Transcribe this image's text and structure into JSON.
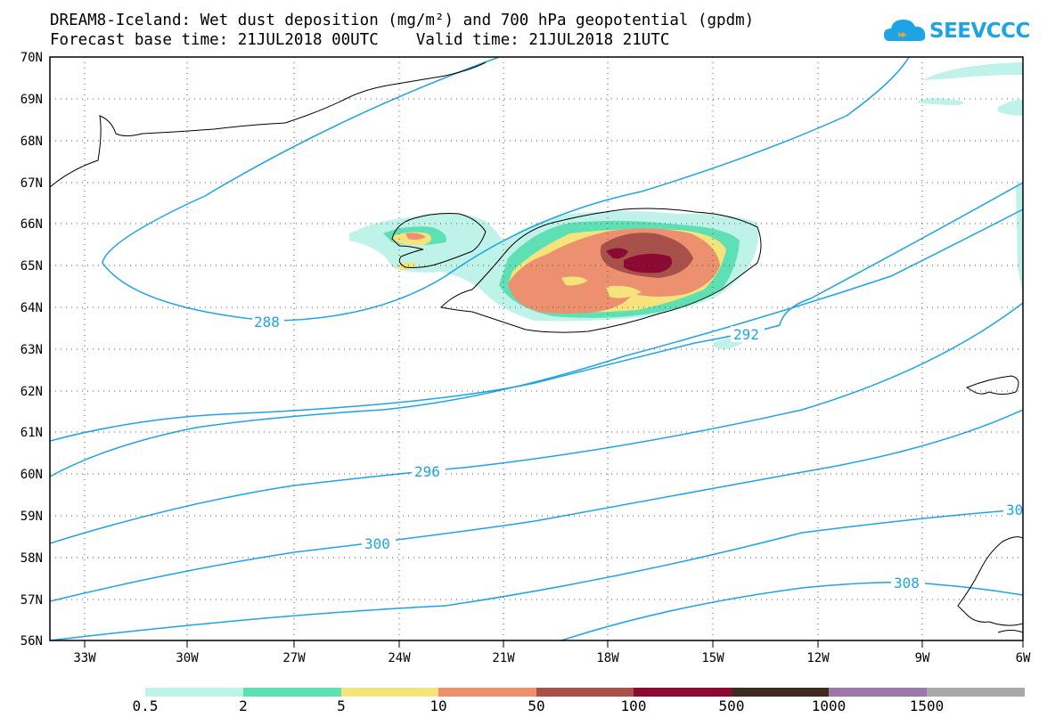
{
  "title": {
    "line1": "DREAM8-Iceland: Wet dust deposition (mg/m²) and 700 hPa geopotential (gpdm)",
    "line2": "Forecast base time: 21JUL2018 00UTC    Valid time: 21JUL2018 21UTC"
  },
  "logo": {
    "text": "SEEVCCC",
    "icon": "cloud-icon"
  },
  "axes": {
    "lat_labels": [
      "70N",
      "69N",
      "68N",
      "67N",
      "66N",
      "65N",
      "64N",
      "63N",
      "62N",
      "61N",
      "60N",
      "59N",
      "58N",
      "57N",
      "56N"
    ],
    "lon_labels": [
      "33W",
      "30W",
      "27W",
      "24W",
      "21W",
      "18W",
      "15W",
      "12W",
      "9W",
      "6W"
    ]
  },
  "contour_labels": [
    {
      "value": "288"
    },
    {
      "value": "292"
    },
    {
      "value": "296"
    },
    {
      "value": "300"
    },
    {
      "value": "30"
    },
    {
      "value": "308"
    }
  ],
  "colorbar": {
    "labels": [
      "0.5",
      "2",
      "5",
      "10",
      "50",
      "100",
      "500",
      "1000",
      "1500"
    ],
    "colors": [
      "#bff2e8",
      "#5fe0b4",
      "#f5e47c",
      "#ec9070",
      "#a8504a",
      "#8c0a32",
      "#3c2a1e",
      "#9c78a8",
      "#a8a8a8"
    ]
  },
  "colors": {
    "contour": "#1ea3e6",
    "coast": "#000000"
  }
}
